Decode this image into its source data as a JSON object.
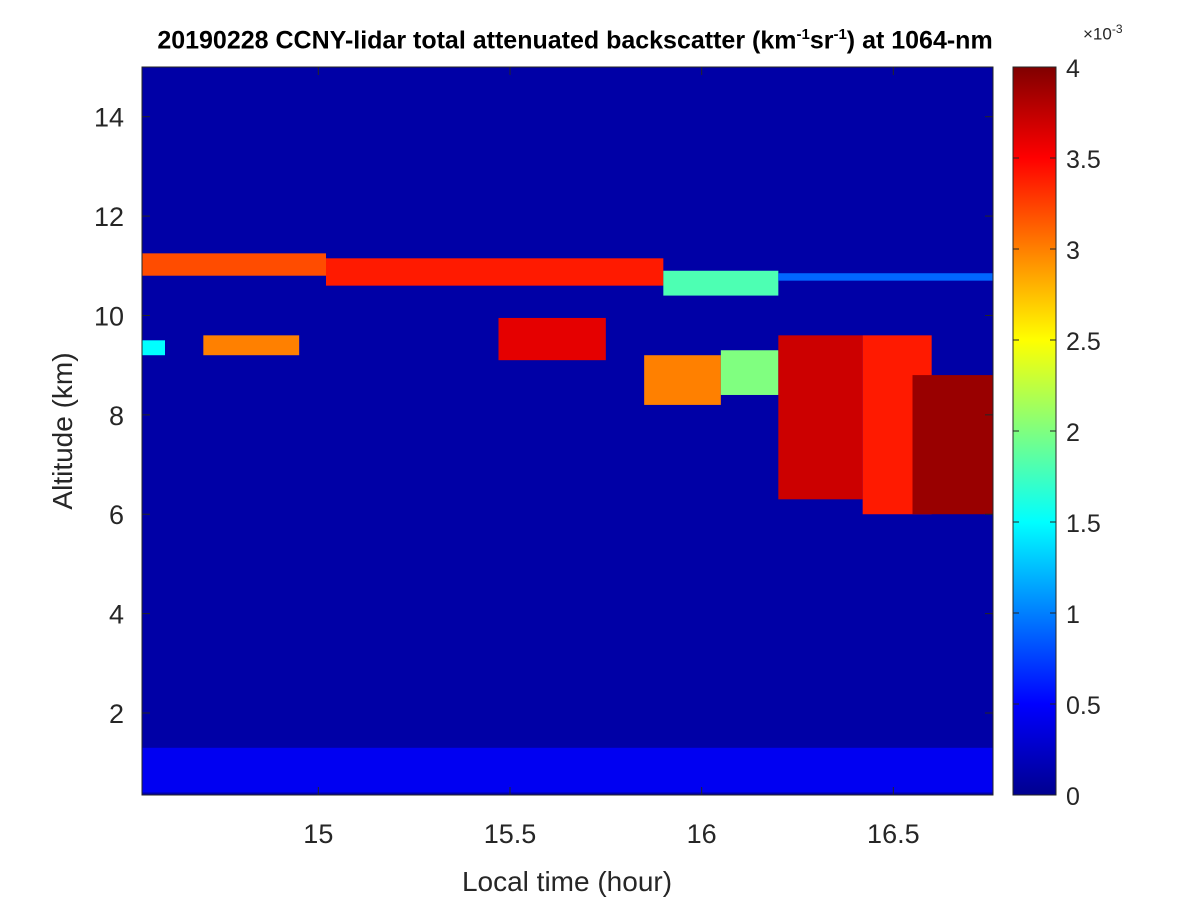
{
  "chart_data": {
    "type": "heatmap",
    "title": {
      "prefix": "20190228 CCNY-lidar total attenuated backscatter (km",
      "sup1": "-1",
      "mid": "sr",
      "sup2": "-1",
      "suffix": ") at 1064-nm"
    },
    "xlabel": "Local time (hour)",
    "ylabel": "Altitude (km)",
    "xlim": [
      14.54,
      16.76
    ],
    "ylim": [
      0.35,
      15.0
    ],
    "xticks": [
      15,
      15.5,
      16,
      16.5
    ],
    "xtick_labels": [
      "15",
      "15.5",
      "16",
      "16.5"
    ],
    "yticks": [
      2,
      4,
      6,
      8,
      10,
      12,
      14
    ],
    "ytick_labels": [
      "2",
      "4",
      "6",
      "8",
      "10",
      "12",
      "14"
    ],
    "colormap": "jet",
    "clim": [
      0,
      0.004
    ],
    "colorbar": {
      "ticks": [
        0,
        0.5,
        1,
        1.5,
        2,
        2.5,
        3,
        3.5,
        4
      ],
      "tick_labels": [
        "0",
        "0.5",
        "1",
        "1.5",
        "2",
        "2.5",
        "3",
        "3.5",
        "4"
      ],
      "exponent_base": "×10",
      "exponent": "-3"
    },
    "background_value_x1e3": 0.15,
    "features": [
      {
        "kind": "boundary-layer",
        "x": [
          14.54,
          16.76
        ],
        "y": [
          0.4,
          1.3
        ],
        "value_x1e3": 0.45
      },
      {
        "kind": "cloud",
        "x": [
          14.54,
          15.02
        ],
        "y": [
          10.8,
          11.25
        ],
        "value_x1e3": 3.2
      },
      {
        "kind": "cloud",
        "x": [
          15.02,
          15.9
        ],
        "y": [
          10.6,
          11.15
        ],
        "value_x1e3": 3.4
      },
      {
        "kind": "cloud",
        "x": [
          15.9,
          16.2
        ],
        "y": [
          10.4,
          10.9
        ],
        "value_x1e3": 1.8
      },
      {
        "kind": "cloud",
        "x": [
          16.2,
          16.76
        ],
        "y": [
          10.7,
          10.85
        ],
        "value_x1e3": 0.9
      },
      {
        "kind": "cloud",
        "x": [
          14.54,
          14.6
        ],
        "y": [
          9.2,
          9.5
        ],
        "value_x1e3": 1.5
      },
      {
        "kind": "cloud",
        "x": [
          14.7,
          14.95
        ],
        "y": [
          9.2,
          9.6
        ],
        "value_x1e3": 3.0
      },
      {
        "kind": "cloud",
        "x": [
          15.47,
          15.75
        ],
        "y": [
          9.1,
          9.95
        ],
        "value_x1e3": 3.6
      },
      {
        "kind": "cloud",
        "x": [
          15.85,
          16.05
        ],
        "y": [
          8.2,
          9.2
        ],
        "value_x1e3": 3.0
      },
      {
        "kind": "cloud",
        "x": [
          16.05,
          16.2
        ],
        "y": [
          8.4,
          9.3
        ],
        "value_x1e3": 2.0
      },
      {
        "kind": "cloud",
        "x": [
          16.2,
          16.42
        ],
        "y": [
          6.3,
          9.6
        ],
        "value_x1e3": 3.7
      },
      {
        "kind": "cloud",
        "x": [
          16.42,
          16.6
        ],
        "y": [
          6.0,
          9.6
        ],
        "value_x1e3": 3.4
      },
      {
        "kind": "cloud",
        "x": [
          16.55,
          16.76
        ],
        "y": [
          6.0,
          8.8
        ],
        "value_x1e3": 3.9
      }
    ]
  }
}
